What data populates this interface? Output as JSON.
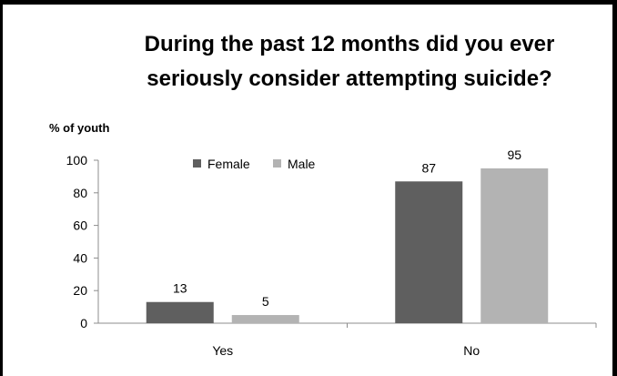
{
  "chart_data": {
    "type": "bar",
    "title_lines": [
      "During the past 12 months did you ever",
      "seriously consider attempting suicide?"
    ],
    "ylabel": "% of youth",
    "xlabel": "",
    "categories": [
      "Yes",
      "No"
    ],
    "series": [
      {
        "name": "Female",
        "values": [
          13,
          87
        ],
        "color": "#5f5f5f"
      },
      {
        "name": "Male",
        "values": [
          5,
          95
        ],
        "color": "#b3b3b3"
      }
    ],
    "ylim": [
      0,
      100
    ],
    "yticks": [
      0,
      20,
      40,
      60,
      80,
      100
    ],
    "grid": false,
    "legend": "top-left",
    "data_labels": true
  }
}
